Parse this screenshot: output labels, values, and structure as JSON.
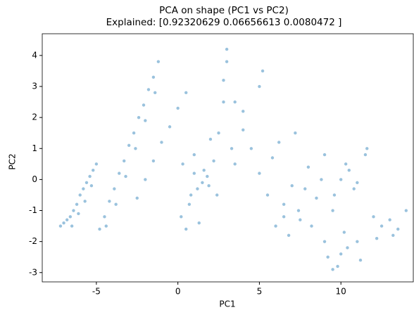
{
  "chart_data": {
    "type": "scatter",
    "title": [
      "PCA on shape (PC1 vs PC2)",
      "Explained: [0.92320629 0.06656613 0.0080472 ]"
    ],
    "x_label": "PC1",
    "y_label": "PC2",
    "xlim": [
      -8.32,
      14.44
    ],
    "ylim": [
      -3.3,
      4.7
    ],
    "xticks": [
      -5,
      0,
      5,
      10
    ],
    "yticks": [
      -3,
      -2,
      -1,
      0,
      1,
      2,
      3,
      4
    ],
    "color": "#1f77b4",
    "x": [
      -7.2,
      -7.0,
      -6.8,
      -6.6,
      -6.4,
      -6.2,
      -6.0,
      -5.8,
      -5.6,
      -5.4,
      -5.2,
      -5.0,
      -6.5,
      -6.1,
      -5.7,
      -5.3,
      -4.8,
      -4.5,
      -4.2,
      -3.9,
      -3.6,
      -3.3,
      -3.0,
      -2.7,
      -2.4,
      -2.1,
      -1.8,
      -1.5,
      -1.2,
      -4.4,
      -3.8,
      -3.2,
      -2.6,
      -2.0,
      -1.4,
      -2.5,
      -2.0,
      -1.5,
      -1.0,
      -0.5,
      0.0,
      0.5,
      0.2,
      0.5,
      0.8,
      1.0,
      1.3,
      1.6,
      1.9,
      2.2,
      2.5,
      2.8,
      3.0,
      3.3,
      0.3,
      0.7,
      1.2,
      1.8,
      2.4,
      3.5,
      4.0,
      4.5,
      5.0,
      5.2,
      2.8,
      3.0,
      3.5,
      4.0,
      5.0,
      1.0,
      1.5,
      2.0,
      5.5,
      6.0,
      6.5,
      7.0,
      7.5,
      8.0,
      8.5,
      9.0,
      9.5,
      10.0,
      10.5,
      11.0,
      11.5,
      6.2,
      6.8,
      7.4,
      8.2,
      9.2,
      9.8,
      10.4,
      11.2,
      5.8,
      7.2,
      8.8,
      9.6,
      10.2,
      10.8,
      11.6,
      6.5,
      7.8,
      9.0,
      9.5,
      10.0,
      10.3,
      11.0,
      12.0,
      12.5,
      13.0,
      13.5,
      14.0,
      12.2,
      13.2
    ],
    "y": [
      -1.5,
      -1.4,
      -1.3,
      -1.2,
      -1.0,
      -0.8,
      -0.5,
      -0.3,
      -0.1,
      0.1,
      0.3,
      0.5,
      -1.5,
      -1.1,
      -0.7,
      -0.2,
      -1.6,
      -1.2,
      -0.7,
      -0.3,
      0.2,
      0.6,
      1.1,
      1.5,
      2.0,
      2.4,
      2.9,
      3.3,
      3.8,
      -1.5,
      -0.8,
      0.1,
      1.0,
      1.9,
      2.8,
      -0.6,
      0.0,
      0.6,
      1.2,
      1.7,
      2.3,
      2.8,
      -1.2,
      -1.6,
      -0.5,
      0.8,
      -1.4,
      0.3,
      -0.2,
      0.6,
      1.5,
      2.5,
      4.2,
      1.0,
      0.5,
      -0.8,
      -0.3,
      0.1,
      -0.5,
      0.5,
      1.6,
      1.0,
      3.0,
      3.5,
      3.2,
      3.8,
      2.5,
      2.2,
      0.2,
      0.2,
      -0.1,
      1.3,
      -0.5,
      -1.5,
      -1.2,
      -0.2,
      -1.3,
      0.4,
      -0.6,
      0.8,
      -1.0,
      0.0,
      0.3,
      -2.0,
      0.8,
      1.2,
      -1.8,
      -1.0,
      -1.5,
      -2.5,
      -2.8,
      -2.2,
      -2.6,
      0.7,
      1.5,
      0.0,
      -0.5,
      -1.7,
      -0.3,
      1.0,
      -0.8,
      -0.3,
      -2.0,
      -2.9,
      -2.4,
      0.5,
      -0.1,
      -1.2,
      -1.5,
      -1.3,
      -1.6,
      -1.0,
      -1.9,
      -1.8
    ]
  }
}
